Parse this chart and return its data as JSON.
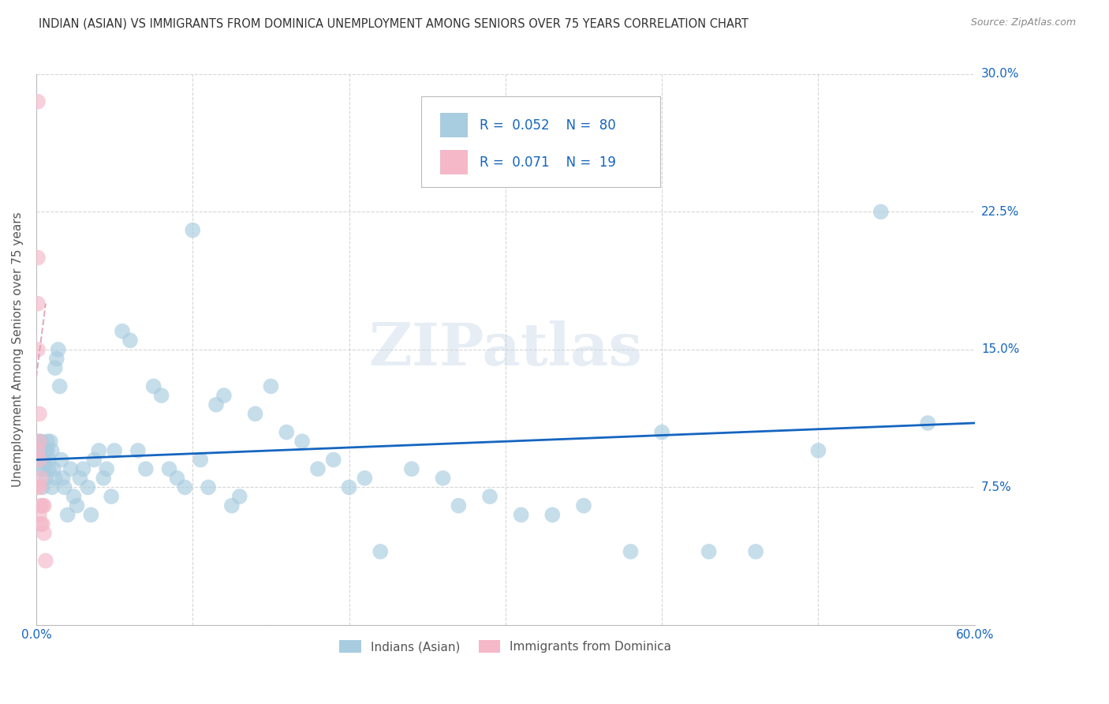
{
  "title": "INDIAN (ASIAN) VS IMMIGRANTS FROM DOMINICA UNEMPLOYMENT AMONG SENIORS OVER 75 YEARS CORRELATION CHART",
  "source": "Source: ZipAtlas.com",
  "ylabel": "Unemployment Among Seniors over 75 years",
  "xlim": [
    0,
    0.6
  ],
  "ylim": [
    0,
    0.3
  ],
  "yticks": [
    0.0,
    0.075,
    0.15,
    0.225,
    0.3
  ],
  "yticklabels": [
    "",
    "7.5%",
    "15.0%",
    "22.5%",
    "30.0%"
  ],
  "watermark": "ZIPatlas",
  "color_blue": "#a8cce0",
  "color_pink": "#f4b8c8",
  "color_trendline_blue": "#1565c0",
  "color_trendline_pink": "#e0a0b8",
  "color_title": "#333333",
  "color_axis": "#bbbbbb",
  "color_grid": "#cccccc",
  "color_rn_label": "#1565c0",
  "indian_asian_x": [
    0.001,
    0.002,
    0.002,
    0.003,
    0.003,
    0.004,
    0.004,
    0.005,
    0.005,
    0.006,
    0.006,
    0.007,
    0.007,
    0.008,
    0.008,
    0.009,
    0.01,
    0.01,
    0.011,
    0.012,
    0.012,
    0.013,
    0.014,
    0.015,
    0.016,
    0.017,
    0.018,
    0.02,
    0.022,
    0.024,
    0.026,
    0.028,
    0.03,
    0.033,
    0.035,
    0.037,
    0.04,
    0.043,
    0.045,
    0.048,
    0.05,
    0.055,
    0.06,
    0.065,
    0.07,
    0.075,
    0.08,
    0.085,
    0.09,
    0.095,
    0.1,
    0.105,
    0.11,
    0.115,
    0.12,
    0.125,
    0.13,
    0.14,
    0.15,
    0.16,
    0.17,
    0.18,
    0.19,
    0.2,
    0.21,
    0.22,
    0.24,
    0.26,
    0.27,
    0.29,
    0.31,
    0.33,
    0.35,
    0.38,
    0.4,
    0.43,
    0.46,
    0.5,
    0.54,
    0.57
  ],
  "indian_asian_y": [
    0.1,
    0.095,
    0.09,
    0.1,
    0.085,
    0.095,
    0.075,
    0.09,
    0.085,
    0.095,
    0.08,
    0.1,
    0.095,
    0.085,
    0.09,
    0.1,
    0.095,
    0.075,
    0.085,
    0.08,
    0.14,
    0.145,
    0.15,
    0.13,
    0.09,
    0.08,
    0.075,
    0.06,
    0.085,
    0.07,
    0.065,
    0.08,
    0.085,
    0.075,
    0.06,
    0.09,
    0.095,
    0.08,
    0.085,
    0.07,
    0.095,
    0.16,
    0.155,
    0.095,
    0.085,
    0.13,
    0.125,
    0.085,
    0.08,
    0.075,
    0.215,
    0.09,
    0.075,
    0.12,
    0.125,
    0.065,
    0.07,
    0.115,
    0.13,
    0.105,
    0.1,
    0.085,
    0.09,
    0.075,
    0.08,
    0.04,
    0.085,
    0.08,
    0.065,
    0.07,
    0.06,
    0.06,
    0.065,
    0.04,
    0.105,
    0.04,
    0.04,
    0.095,
    0.225,
    0.11
  ],
  "dominica_x": [
    0.001,
    0.001,
    0.001,
    0.001,
    0.001,
    0.001,
    0.002,
    0.002,
    0.002,
    0.002,
    0.002,
    0.003,
    0.003,
    0.003,
    0.004,
    0.004,
    0.005,
    0.005,
    0.006
  ],
  "dominica_y": [
    0.285,
    0.2,
    0.175,
    0.15,
    0.095,
    0.075,
    0.115,
    0.1,
    0.09,
    0.075,
    0.06,
    0.08,
    0.065,
    0.055,
    0.065,
    0.055,
    0.065,
    0.05,
    0.035
  ],
  "trendline_blue_x0": 0.0,
  "trendline_blue_y0": 0.09,
  "trendline_blue_x1": 0.6,
  "trendline_blue_y1": 0.11,
  "trendline_pink_x0": 0.0,
  "trendline_pink_y0": 0.135,
  "trendline_pink_x1": 0.006,
  "trendline_pink_y1": 0.175
}
